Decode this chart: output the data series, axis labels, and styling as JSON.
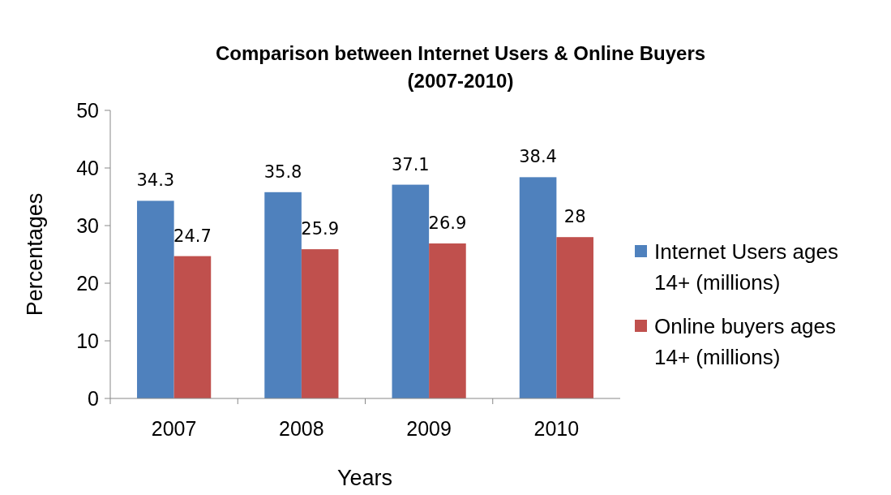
{
  "chart_data": {
    "type": "bar",
    "title": "Comparison between Internet Users & Online Buyers\n(2007-2010)",
    "xlabel": "Years",
    "ylabel": "Percentages",
    "categories": [
      "2007",
      "2008",
      "2009",
      "2010"
    ],
    "series": [
      {
        "name": "Internet Users ages 14+ (millions)",
        "color": "#4f81bd",
        "values": [
          34.3,
          35.8,
          37.1,
          38.4
        ]
      },
      {
        "name": "Online buyers ages 14+ (millions)",
        "color": "#c0504d",
        "values": [
          24.7,
          25.9,
          26.9,
          28
        ]
      }
    ],
    "ylim": [
      0,
      50
    ],
    "yticks": [
      0,
      10,
      20,
      30,
      40,
      50
    ],
    "data_labels": true,
    "legend": "right",
    "grid": false
  }
}
